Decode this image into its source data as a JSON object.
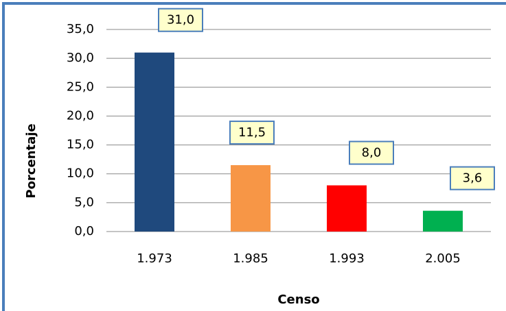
{
  "chart_data": {
    "type": "bar",
    "categories": [
      "1.973",
      "1.985",
      "1.993",
      "2.005"
    ],
    "values": [
      31.0,
      11.5,
      8.0,
      3.6
    ],
    "value_labels": [
      "31,0",
      "11,5",
      "8,0",
      "3,6"
    ],
    "colors": [
      "#1f497d",
      "#f79646",
      "#ff0000",
      "#00b050"
    ],
    "x_label": "Censo",
    "y_label": "Porcentaje",
    "ylim": [
      0,
      35
    ],
    "yticks": [
      {
        "value": 0,
        "label": "0,0"
      },
      {
        "value": 5,
        "label": "5,0"
      },
      {
        "value": 10,
        "label": "10,0"
      },
      {
        "value": 15,
        "label": "15,0"
      },
      {
        "value": 20,
        "label": "20,0"
      },
      {
        "value": 25,
        "label": "25,0"
      },
      {
        "value": 30,
        "label": "30,0"
      },
      {
        "value": 35,
        "label": "35,0"
      }
    ],
    "grid": true
  }
}
